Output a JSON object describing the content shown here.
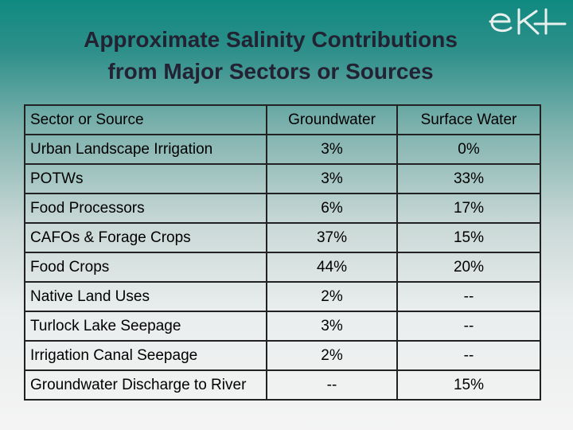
{
  "slide": {
    "title_line1": "Approximate Salinity Contributions",
    "title_line2": "from Major Sectors or Sources",
    "logo_text": "eKI"
  },
  "table": {
    "headers": [
      "Sector or Source",
      "Groundwater",
      "Surface Water"
    ],
    "rows": [
      [
        "Urban Landscape Irrigation",
        "3%",
        "0%"
      ],
      [
        "POTWs",
        "3%",
        "33%"
      ],
      [
        "Food Processors",
        "6%",
        "17%"
      ],
      [
        "CAFOs & Forage Crops",
        "37%",
        "15%"
      ],
      [
        "Food Crops",
        "44%",
        "20%"
      ],
      [
        "Native Land Uses",
        "2%",
        "--"
      ],
      [
        "Turlock Lake Seepage",
        "3%",
        "--"
      ],
      [
        "Irrigation Canal Seepage",
        "2%",
        "--"
      ],
      [
        "Groundwater Discharge to River",
        "--",
        "15%"
      ]
    ]
  }
}
